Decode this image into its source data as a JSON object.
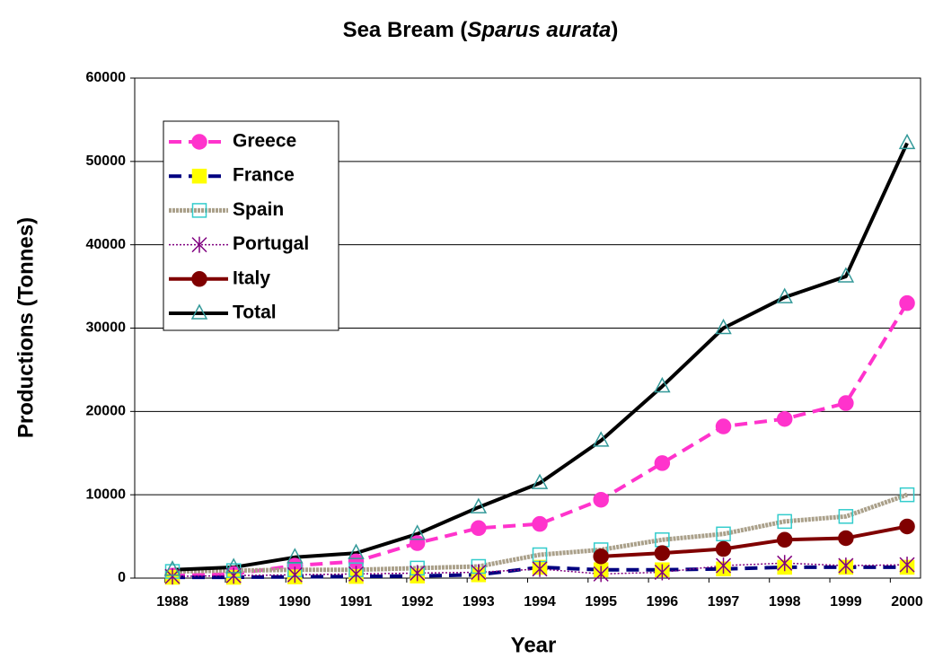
{
  "chart_data": {
    "type": "line",
    "title": [
      "Sea Bream (",
      "Sparus aurata",
      ")"
    ],
    "x_label": "Year",
    "y_label": "Productions (Tonnes)",
    "categories": [
      "1988",
      "1989",
      "1990",
      "1991",
      "1992",
      "1993",
      "1994",
      "1995",
      "1996",
      "1997",
      "1998",
      "1999",
      "2000"
    ],
    "ylim": [
      0,
      60000
    ],
    "yticks": [
      0,
      10000,
      20000,
      30000,
      40000,
      50000,
      60000
    ],
    "grid": true,
    "legend": "upper left",
    "series": [
      {
        "name": "Greece",
        "color": "#ff33cc",
        "marker": "circle",
        "marker_fill": "#ff33cc",
        "line_style": "dashed",
        "values": [
          300,
          500,
          1500,
          2000,
          4200,
          6000,
          6500,
          9400,
          13800,
          18200,
          19100,
          21000,
          33000
        ]
      },
      {
        "name": "France",
        "color": "#000080",
        "marker": "square",
        "marker_fill": "#ffff00",
        "line_style": "dashed",
        "values": [
          100,
          100,
          150,
          200,
          250,
          400,
          1300,
          1000,
          1000,
          1100,
          1300,
          1300,
          1300
        ]
      },
      {
        "name": "Spain",
        "color": "#aaa08a",
        "marker": "square",
        "marker_fill": "none",
        "marker_color": "#33cccc",
        "line_style": "dotted",
        "values": [
          800,
          900,
          1000,
          1000,
          1200,
          1400,
          2800,
          3400,
          4600,
          5300,
          6800,
          7400,
          10000
        ]
      },
      {
        "name": "Portugal",
        "color": "#800080",
        "marker": "star",
        "marker_fill": "none",
        "line_style": "dotted",
        "values": [
          200,
          300,
          400,
          500,
          600,
          700,
          1100,
          500,
          700,
          1500,
          1800,
          1500,
          1600
        ]
      },
      {
        "name": "Italy",
        "color": "#800000",
        "marker": "circle",
        "marker_fill": "#800000",
        "line_style": "solid",
        "values": [
          null,
          null,
          null,
          null,
          null,
          null,
          null,
          2600,
          3000,
          3500,
          4600,
          4800,
          6200
        ]
      },
      {
        "name": "Total",
        "color": "#000000",
        "marker": "triangle",
        "marker_fill": "none",
        "marker_color": "#339999",
        "line_style": "solid",
        "values": [
          1000,
          1300,
          2500,
          3000,
          5300,
          8500,
          11400,
          16500,
          23000,
          30000,
          33700,
          36200,
          52200
        ]
      }
    ]
  }
}
